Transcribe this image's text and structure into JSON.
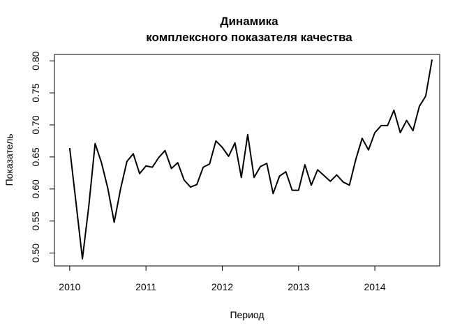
{
  "chart_data": {
    "type": "line",
    "title_lines": [
      "Динамика",
      "комплексного показателя качества"
    ],
    "xlabel": "Период",
    "ylabel": "Показатель",
    "xlim": [
      2009.8,
      2014.85
    ],
    "ylim": [
      0.48,
      0.81
    ],
    "x_ticks": [
      {
        "value": 2010,
        "label": "2010"
      },
      {
        "value": 2011,
        "label": "2011"
      },
      {
        "value": 2012,
        "label": "2012"
      },
      {
        "value": 2013,
        "label": "2013"
      },
      {
        "value": 2014,
        "label": "2014"
      }
    ],
    "y_ticks": [
      {
        "value": 0.5,
        "label": "0.50"
      },
      {
        "value": 0.55,
        "label": "0.55"
      },
      {
        "value": 0.6,
        "label": "0.60"
      },
      {
        "value": 0.65,
        "label": "0.65"
      },
      {
        "value": 0.7,
        "label": "0.70"
      },
      {
        "value": 0.75,
        "label": "0.75"
      },
      {
        "value": 0.8,
        "label": "0.80"
      }
    ],
    "grid": false,
    "line_color": "#000000",
    "series": [
      {
        "x_start": 2010,
        "frequency": 12,
        "values": [
          0.664,
          0.578,
          0.491,
          0.573,
          0.671,
          0.641,
          0.601,
          0.548,
          0.6,
          0.643,
          0.655,
          0.624,
          0.636,
          0.634,
          0.649,
          0.66,
          0.632,
          0.641,
          0.614,
          0.603,
          0.607,
          0.634,
          0.639,
          0.675,
          0.665,
          0.651,
          0.672,
          0.618,
          0.685,
          0.618,
          0.635,
          0.64,
          0.593,
          0.62,
          0.627,
          0.598,
          0.598,
          0.638,
          0.606,
          0.63,
          0.621,
          0.612,
          0.622,
          0.611,
          0.606,
          0.646,
          0.679,
          0.661,
          0.688,
          0.699,
          0.699,
          0.723,
          0.688,
          0.707,
          0.691,
          0.729,
          0.745,
          0.802
        ]
      }
    ]
  }
}
